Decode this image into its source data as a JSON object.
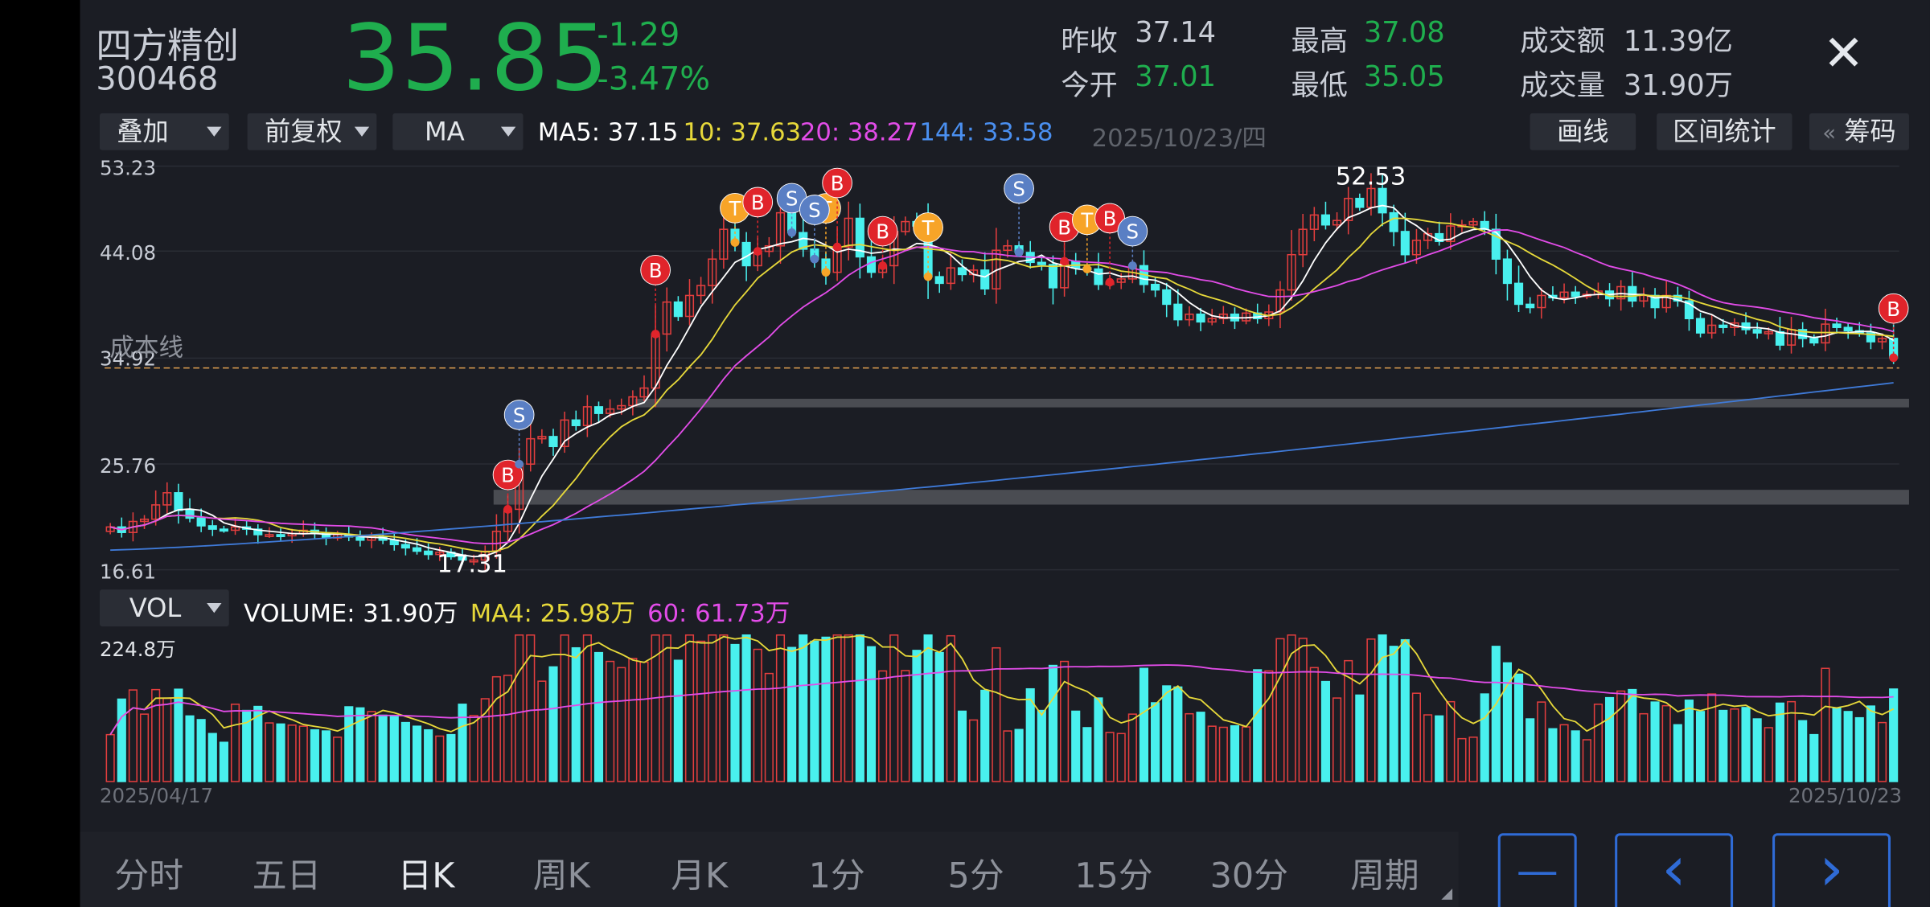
{
  "stock": {
    "name": "四方精创",
    "code": "300468",
    "price": "35.85",
    "change": "-1.29",
    "change_pct": "-3.47%"
  },
  "quote": [
    {
      "label": "昨收",
      "value": "37.14",
      "color": "#c9cdd6"
    },
    {
      "label": "今开",
      "value": "37.01",
      "color": "#1fae4e"
    },
    {
      "label": "最高",
      "value": "37.08",
      "color": "#1fae4e"
    },
    {
      "label": "最低",
      "value": "35.05",
      "color": "#1fae4e"
    },
    {
      "label": "成交额",
      "value": "11.39亿",
      "color": "#c9cdd6"
    },
    {
      "label": "成交量",
      "value": "31.90万",
      "color": "#c9cdd6"
    }
  ],
  "toolbar": {
    "overlay": "叠加",
    "adjust": "前复权",
    "indicator": "MA",
    "date": "2025/10/23/四",
    "draw": "画线",
    "range": "区间统计",
    "chips_arrow": "«",
    "chips": "筹码"
  },
  "ma": {
    "ma5": "MA5: 37.15",
    "ma10": "10: 37.63",
    "ma20": "20: 38.27",
    "ma144": "144: 33.58"
  },
  "colors": {
    "up": "#e33e3e",
    "down": "#49f0ee",
    "ma5": "#ffffff",
    "ma10": "#e6d83a",
    "ma20": "#e24ce8",
    "ma144": "#3f7ad8",
    "buy": "#e0242b",
    "sell": "#5a7fc4",
    "t": "#f7a428",
    "accent": "#2f6bd6"
  },
  "price_axis": {
    "ticks": [
      "53.23",
      "44.08",
      "34.92",
      "25.76",
      "16.61"
    ],
    "cost_line": "成本线"
  },
  "annotations": {
    "high": "52.53",
    "low": "17.31"
  },
  "volume": {
    "selector": "VOL",
    "volume": "VOLUME: 31.90万",
    "ma4": "MA4: 25.98万",
    "ma60": "60: 61.73万",
    "max": "224.8万"
  },
  "dates": {
    "start": "2025/04/17",
    "end": "2025/10/23"
  },
  "tabs": [
    "分时",
    "五日",
    "日K",
    "周K",
    "月K",
    "1分",
    "5分",
    "15分",
    "30分",
    "周期"
  ],
  "active_tab": "日K",
  "nav": {
    "minus": "—",
    "prev": "‹",
    "next": "›"
  },
  "signal_labels": {
    "buy": "B",
    "sell": "S",
    "t": "T"
  },
  "chart_data": {
    "type": "candlestick",
    "ylim": [
      16.61,
      53.23
    ],
    "approx_close": [
      20.5,
      20.0,
      21.0,
      21.2,
      22.5,
      23.6,
      22.0,
      21.3,
      20.6,
      20.3,
      20.2,
      20.5,
      20.3,
      19.8,
      19.8,
      19.7,
      19.9,
      20.2,
      19.9,
      19.5,
      19.8,
      19.6,
      19.3,
      19.6,
      19.3,
      18.9,
      18.6,
      18.3,
      18.0,
      18.2,
      17.8,
      17.5,
      17.5,
      18.3,
      20.1,
      22.1,
      26.2,
      28.5,
      28.7,
      27.8,
      30.2,
      29.7,
      31.4,
      30.8,
      31.2,
      31.5,
      32.3,
      33.1,
      38.0,
      40.9,
      39.6,
      41.5,
      42.4,
      44.8,
      47.5,
      46.3,
      44.2,
      45.5,
      46.0,
      49.0,
      47.2,
      45.7,
      44.8,
      43.6,
      45.9,
      48.5,
      45.0,
      43.6,
      44.2,
      47.3,
      48.2,
      47.8,
      43.2,
      42.6,
      44.0,
      43.4,
      43.8,
      42.1,
      45.6,
      46.0,
      45.4,
      44.5,
      44.3,
      42.2,
      44.6,
      44.0,
      43.9,
      42.5,
      42.7,
      43.0,
      44.2,
      42.5,
      42.0,
      40.7,
      39.3,
      39.8,
      39.1,
      39.4,
      39.8,
      39.2,
      39.9,
      39.4,
      40.0,
      42.0,
      45.2,
      47.5,
      48.8,
      47.9,
      48.3,
      50.3,
      49.5,
      51.2,
      49.0,
      47.3,
      45.2,
      46.5,
      47.1,
      46.4,
      47.8,
      47.9,
      48.2,
      47.5,
      44.8,
      42.6,
      40.7,
      40.4,
      41.5,
      41.3,
      41.8,
      41.4,
      41.6,
      41.9,
      41.2,
      42.3,
      41.0,
      41.5,
      40.4,
      41.5,
      41.0,
      39.4,
      38.1,
      38.8,
      38.6,
      39.0,
      38.4,
      38.1,
      38.2,
      37.0,
      38.4,
      37.6,
      37.2,
      38.9,
      38.6,
      38.3,
      38.1,
      37.3,
      37.6,
      35.85
    ],
    "ma144_end": 33.58,
    "volume_max": "224.8万",
    "signals": [
      "B",
      "S",
      "B",
      "T",
      "B",
      "T",
      "S",
      "S",
      "B",
      "B",
      "T",
      "S",
      "B",
      "T",
      "B",
      "S",
      "B"
    ]
  }
}
